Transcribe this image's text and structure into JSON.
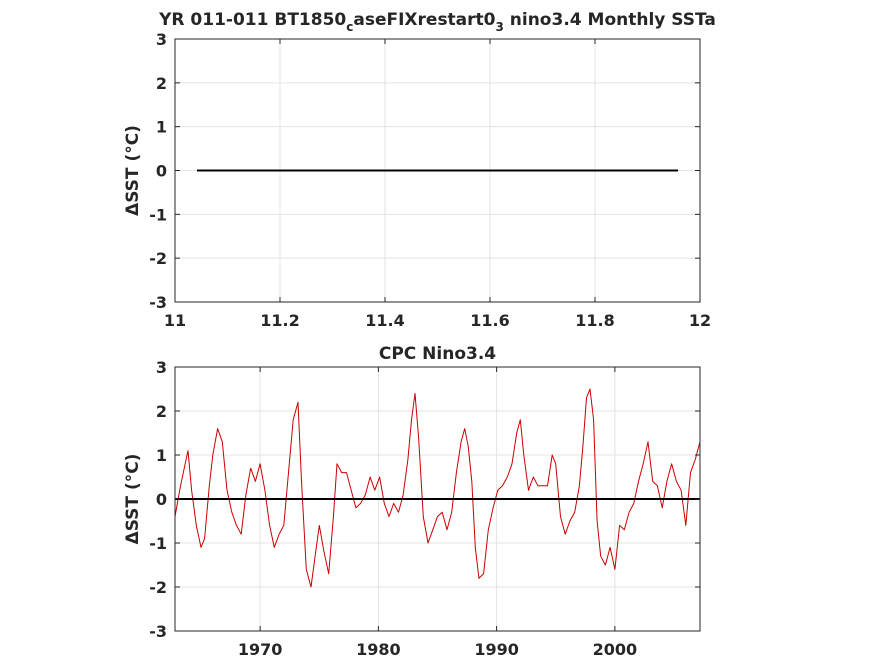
{
  "chart_data": [
    {
      "type": "line",
      "title": "YR 011-011 BT1850",
      "title_sub": "c",
      "title_mid": "aseFIXrestart0",
      "title_sub2": "3",
      "title_end": " nino3.4 Monthly SSTa",
      "ylabel": "ΔSST (°C)",
      "xlim": [
        11,
        12
      ],
      "ylim": [
        -3,
        3
      ],
      "xticks": [
        "11",
        "11.2",
        "11.4",
        "11.6",
        "11.8",
        "12"
      ],
      "yticks": [
        "-3",
        "-2",
        "-1",
        "0",
        "1",
        "2",
        "3"
      ],
      "grid": true,
      "series": [
        {
          "color": "#000000",
          "x": [
            11.042,
            11.958
          ],
          "values": [
            0,
            0
          ]
        }
      ]
    },
    {
      "type": "line",
      "title": "CPC Nino3.4",
      "ylabel": "ΔSST (°C)",
      "xlim": [
        1962.8,
        2007.2
      ],
      "ylim": [
        -3,
        3
      ],
      "xticks": [
        "1970",
        "1980",
        "1990",
        "2000"
      ],
      "yticks": [
        "-3",
        "-2",
        "-1",
        "0",
        "1",
        "2",
        "3"
      ],
      "grid": true,
      "zero_line_color": "#000000",
      "series": [
        {
          "color": "#cc0000",
          "x": [
            1962.8,
            1963.2,
            1963.5,
            1963.9,
            1964.2,
            1964.6,
            1965.0,
            1965.3,
            1965.7,
            1966.0,
            1966.4,
            1966.8,
            1967.2,
            1967.6,
            1968.0,
            1968.4,
            1968.8,
            1969.2,
            1969.6,
            1970.0,
            1970.4,
            1970.8,
            1971.2,
            1971.6,
            1972.0,
            1972.4,
            1972.8,
            1973.2,
            1973.5,
            1973.9,
            1974.3,
            1974.7,
            1975.0,
            1975.4,
            1975.8,
            1976.2,
            1976.5,
            1976.9,
            1977.3,
            1977.7,
            1978.1,
            1978.5,
            1978.9,
            1979.3,
            1979.7,
            1980.1,
            1980.5,
            1980.9,
            1981.3,
            1981.7,
            1982.1,
            1982.5,
            1982.8,
            1983.1,
            1983.4,
            1983.8,
            1984.2,
            1984.6,
            1985.0,
            1985.4,
            1985.8,
            1986.2,
            1986.6,
            1987.0,
            1987.3,
            1987.6,
            1987.9,
            1988.2,
            1988.5,
            1988.9,
            1989.3,
            1989.7,
            1990.1,
            1990.5,
            1990.9,
            1991.3,
            1991.7,
            1992.0,
            1992.3,
            1992.7,
            1993.1,
            1993.5,
            1993.9,
            1994.3,
            1994.7,
            1995.0,
            1995.4,
            1995.8,
            1996.2,
            1996.6,
            1997.0,
            1997.3,
            1997.6,
            1997.9,
            1998.2,
            1998.5,
            1998.8,
            1999.2,
            1999.6,
            2000.0,
            2000.4,
            2000.8,
            2001.2,
            2001.6,
            2002.0,
            2002.4,
            2002.8,
            2003.2,
            2003.6,
            2004.0,
            2004.4,
            2004.8,
            2005.2,
            2005.6,
            2006.0,
            2006.4,
            2006.8,
            2007.2
          ],
          "values": [
            -0.4,
            0.2,
            0.6,
            1.1,
            0.2,
            -0.6,
            -1.1,
            -0.9,
            0.3,
            1.0,
            1.6,
            1.3,
            0.2,
            -0.3,
            -0.6,
            -0.8,
            0.1,
            0.7,
            0.4,
            0.8,
            0.2,
            -0.6,
            -1.1,
            -0.8,
            -0.6,
            0.6,
            1.8,
            2.2,
            0.4,
            -1.6,
            -2.0,
            -1.2,
            -0.6,
            -1.2,
            -1.7,
            -0.4,
            0.8,
            0.6,
            0.6,
            0.2,
            -0.2,
            -0.1,
            0.1,
            0.5,
            0.2,
            0.5,
            -0.1,
            -0.4,
            -0.1,
            -0.3,
            0.1,
            0.9,
            1.8,
            2.4,
            1.4,
            -0.4,
            -1.0,
            -0.7,
            -0.4,
            -0.3,
            -0.7,
            -0.3,
            0.6,
            1.3,
            1.6,
            1.2,
            0.4,
            -1.1,
            -1.8,
            -1.7,
            -0.7,
            -0.2,
            0.2,
            0.3,
            0.5,
            0.8,
            1.5,
            1.8,
            1.0,
            0.2,
            0.5,
            0.3,
            0.3,
            0.3,
            1.0,
            0.8,
            -0.4,
            -0.8,
            -0.5,
            -0.3,
            0.3,
            1.2,
            2.3,
            2.5,
            1.8,
            -0.5,
            -1.3,
            -1.5,
            -1.1,
            -1.6,
            -0.6,
            -0.7,
            -0.3,
            -0.1,
            0.4,
            0.8,
            1.3,
            0.4,
            0.3,
            -0.2,
            0.4,
            0.8,
            0.4,
            0.2,
            -0.6,
            0.6,
            0.9,
            1.3
          ]
        }
      ]
    }
  ]
}
